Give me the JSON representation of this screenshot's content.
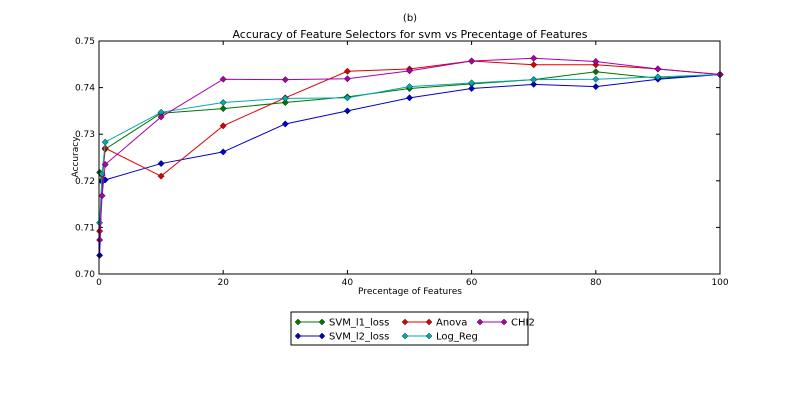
{
  "chart_data": {
    "type": "line",
    "panel_label": "(b)",
    "title": "Accuracy of Feature Selectors for svm vs Precentage of Features",
    "xlabel": "Precentage of Features",
    "ylabel": "Accuracy",
    "xlim": [
      0,
      100
    ],
    "ylim": [
      0.7,
      0.75
    ],
    "xticks": [
      0,
      20,
      40,
      60,
      80,
      100
    ],
    "yticks": [
      0.7,
      0.71,
      0.72,
      0.73,
      0.74,
      0.75
    ],
    "ytick_labels": [
      "0.70",
      "0.71",
      "0.72",
      "0.73",
      "0.74",
      "0.75"
    ],
    "grid": false,
    "legend_position": "below-center",
    "series": [
      {
        "name": "SVM_l1_loss",
        "color": "#007700",
        "x": [
          0.1,
          0.5,
          1,
          10,
          20,
          30,
          40,
          50,
          60,
          70,
          80,
          90,
          100
        ],
        "y": [
          0.7218,
          0.7202,
          0.7268,
          0.7345,
          0.7355,
          0.7368,
          0.738,
          0.7398,
          0.7408,
          0.7417,
          0.7434,
          0.742,
          0.7428
        ]
      },
      {
        "name": "SVM_l2_loss",
        "color": "#0000cc",
        "x": [
          0.1,
          0.5,
          1,
          10,
          20,
          30,
          40,
          50,
          60,
          70,
          80,
          90,
          100
        ],
        "y": [
          0.704,
          0.7198,
          0.7202,
          0.7237,
          0.7262,
          0.7322,
          0.735,
          0.7378,
          0.7398,
          0.7407,
          0.7402,
          0.7418,
          0.7428
        ]
      },
      {
        "name": "Anova",
        "color": "#dd0000",
        "x": [
          0.1,
          0.5,
          1,
          10,
          20,
          30,
          40,
          50,
          60,
          70,
          80,
          90,
          100
        ],
        "y": [
          0.7092,
          0.7212,
          0.727,
          0.721,
          0.7318,
          0.7378,
          0.7435,
          0.744,
          0.7457,
          0.7449,
          0.7449,
          0.744,
          0.7428
        ]
      },
      {
        "name": "Log_Reg",
        "color": "#00aaaa",
        "x": [
          0.1,
          0.5,
          1,
          10,
          20,
          30,
          40,
          50,
          60,
          70,
          80,
          90,
          100
        ],
        "y": [
          0.711,
          0.7215,
          0.7283,
          0.7347,
          0.7368,
          0.7377,
          0.7378,
          0.7402,
          0.741,
          0.7417,
          0.7418,
          0.7423,
          0.7428
        ]
      },
      {
        "name": "CHI2",
        "color": "#aa00aa",
        "x": [
          0.1,
          0.5,
          1,
          10,
          20,
          30,
          40,
          50,
          60,
          70,
          80,
          90,
          100
        ],
        "y": [
          0.7073,
          0.7168,
          0.7235,
          0.7337,
          0.7418,
          0.7417,
          0.7419,
          0.7436,
          0.7457,
          0.7463,
          0.7456,
          0.744,
          0.7428
        ]
      }
    ]
  }
}
